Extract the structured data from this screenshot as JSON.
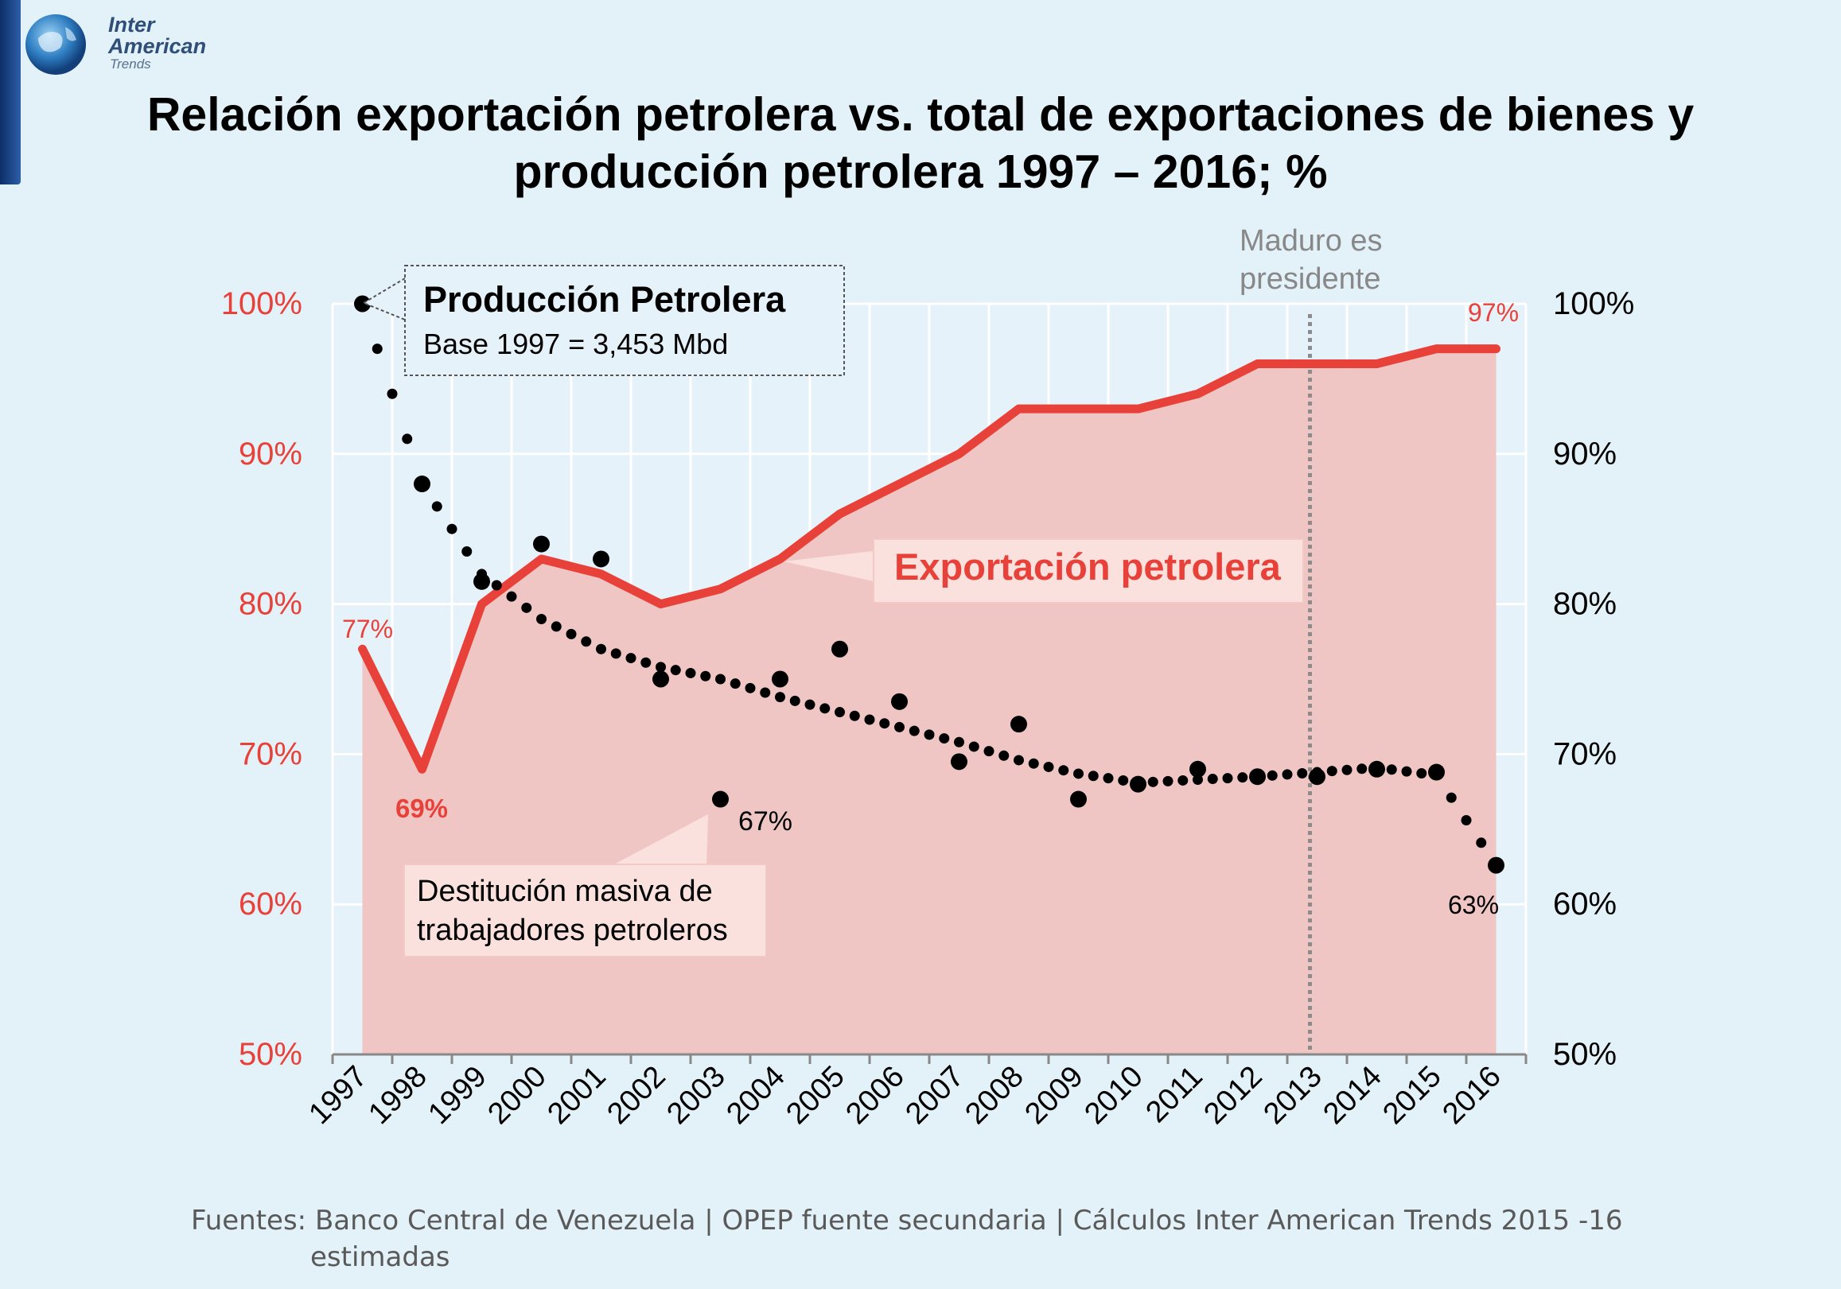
{
  "logo": {
    "line1": "Inter",
    "line2": "American",
    "line3": "Trends"
  },
  "title": {
    "line1": "Relación exportación petrolera vs. total de exportaciones de bienes y",
    "line2": "producción petrolera 1997 – 2016; %"
  },
  "chart_data": {
    "type": "line",
    "title": "Relación exportación petrolera vs. total de exportaciones de bienes y producción petrolera 1997 – 2016; %",
    "categories": [
      "1997",
      "1998",
      "1999",
      "2000",
      "2001",
      "2002",
      "2003",
      "2004",
      "2005",
      "2006",
      "2007",
      "2008",
      "2009",
      "2010",
      "2011",
      "2012",
      "2013",
      "2014",
      "2015",
      "2016"
    ],
    "y_ticks_left": [
      "100%",
      "90%",
      "80%",
      "70%",
      "60%",
      "50%"
    ],
    "y_ticks_right": [
      "100%",
      "90%",
      "80%",
      "70%",
      "60%",
      "50%"
    ],
    "ylim": [
      50,
      100
    ],
    "grid": true,
    "series": [
      {
        "name": "Exportación petrolera",
        "style": "line-area",
        "color": "#e8413a",
        "fill": "#efc6c4",
        "values": [
          77,
          69,
          80,
          83,
          82,
          80,
          81,
          83,
          86,
          88,
          90,
          93,
          93,
          93,
          94,
          96,
          96,
          96,
          97,
          97
        ]
      },
      {
        "name": "Producción Petrolera",
        "style": "points",
        "color": "#000000",
        "values": [
          100,
          88,
          81.5,
          84,
          83,
          75,
          67,
          75,
          77,
          73.5,
          69.5,
          72,
          67,
          68,
          69,
          68.5,
          68.5,
          69,
          68.8,
          62.6
        ]
      }
    ],
    "trend_values": [
      100,
      88,
      82,
      79,
      77,
      75.8,
      75,
      73.8,
      72.8,
      71.8,
      70.8,
      69.6,
      68.7,
      68.1,
      68.3,
      68.5,
      68.8,
      69.1,
      68.6,
      62.6
    ],
    "annotations": {
      "production_box_title": "Producción Petrolera",
      "production_box_sub": "Base 1997 = 3,453 Mbd",
      "export_label": "Exportación petrolera",
      "maduro": [
        "Maduro es",
        "presidente"
      ],
      "destitucion": [
        "Destitución masiva de",
        "trabajadores petroleros"
      ],
      "label_77": "77%",
      "label_69": "69%",
      "label_97": "97%",
      "label_67": "67%",
      "label_63": "63%"
    },
    "marker_year": "2013",
    "colors": {
      "axis_red": "#e8413a",
      "grid": "#ffffff",
      "vline": "#8c8c8c"
    }
  },
  "source": {
    "line1": "Fuentes: Banco Central de Venezuela | OPEP fuente secundaria | Cálculos Inter American Trends 2015 -16",
    "line2": "estimadas"
  }
}
